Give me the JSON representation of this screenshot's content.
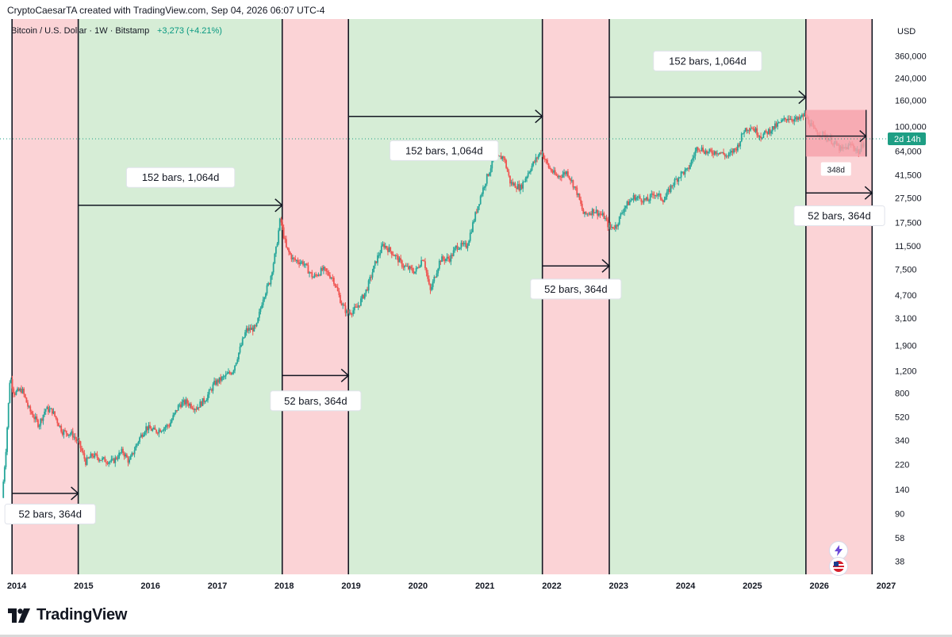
{
  "attribution": "CryptoCaesarTA created with TradingView.com, Sep 04, 2026 06:07 UTC-4",
  "footer_brand": "TradingView",
  "colors": {
    "bear_band": "#fbd3d6",
    "bull_band": "#d6edd6",
    "candle_up": "#26a69a",
    "candle_down": "#ef5350",
    "current_price": "#1e9e84",
    "projection_box": "#f6a1aa"
  },
  "chart_data": {
    "type": "candlestick",
    "title": "Bitcoin / U.S. Dollar · 1W · Bitstamp",
    "change_label": "+3,273 (+4.21%)",
    "currency": "USD",
    "y_scale": "log",
    "xlim": [
      2013.75,
      2027.0
    ],
    "ylim": [
      30,
      700000
    ],
    "x_ticks": [
      "2014",
      "2015",
      "2016",
      "2017",
      "2018",
      "2019",
      "2020",
      "2021",
      "2022",
      "2023",
      "2024",
      "2025",
      "2026",
      "2027"
    ],
    "y_ticks": [
      "360,000",
      "240,000",
      "160,000",
      "100,000",
      "64,000",
      "41,500",
      "27,500",
      "17,500",
      "11,500",
      "7,500",
      "4,700",
      "3,100",
      "1,900",
      "1,200",
      "800",
      "520",
      "340",
      "220",
      "140",
      "90",
      "58",
      "38"
    ],
    "current_price_label": "2d 14h",
    "current_price_value": 80000,
    "price_path": [
      [
        2013.8,
        120
      ],
      [
        2013.86,
        300
      ],
      [
        2013.92,
        1100
      ],
      [
        2013.98,
        800
      ],
      [
        2014.1,
        850
      ],
      [
        2014.2,
        600
      ],
      [
        2014.35,
        450
      ],
      [
        2014.45,
        600
      ],
      [
        2014.55,
        580
      ],
      [
        2014.7,
        400
      ],
      [
        2014.85,
        380
      ],
      [
        2014.95,
        320
      ],
      [
        2015.05,
        230
      ],
      [
        2015.15,
        260
      ],
      [
        2015.3,
        240
      ],
      [
        2015.45,
        230
      ],
      [
        2015.6,
        280
      ],
      [
        2015.7,
        230
      ],
      [
        2015.85,
        350
      ],
      [
        2015.95,
        430
      ],
      [
        2016.1,
        400
      ],
      [
        2016.3,
        450
      ],
      [
        2016.45,
        650
      ],
      [
        2016.55,
        680
      ],
      [
        2016.7,
        610
      ],
      [
        2016.85,
        730
      ],
      [
        2016.98,
        960
      ],
      [
        2017.1,
        1050
      ],
      [
        2017.25,
        1200
      ],
      [
        2017.45,
        2500
      ],
      [
        2017.6,
        2600
      ],
      [
        2017.7,
        4500
      ],
      [
        2017.8,
        6000
      ],
      [
        2017.9,
        11000
      ],
      [
        2017.96,
        19000
      ],
      [
        2018.05,
        11000
      ],
      [
        2018.15,
        9000
      ],
      [
        2018.3,
        8500
      ],
      [
        2018.45,
        6500
      ],
      [
        2018.6,
        7500
      ],
      [
        2018.75,
        6400
      ],
      [
        2018.88,
        4000
      ],
      [
        2018.96,
        3400
      ],
      [
        2019.1,
        3700
      ],
      [
        2019.25,
        5200
      ],
      [
        2019.4,
        9000
      ],
      [
        2019.5,
        11800
      ],
      [
        2019.65,
        10000
      ],
      [
        2019.8,
        8000
      ],
      [
        2019.98,
        7200
      ],
      [
        2020.1,
        9500
      ],
      [
        2020.2,
        5000
      ],
      [
        2020.35,
        9000
      ],
      [
        2020.5,
        9200
      ],
      [
        2020.6,
        11500
      ],
      [
        2020.75,
        11500
      ],
      [
        2020.85,
        18000
      ],
      [
        2020.96,
        29000
      ],
      [
        2021.05,
        40000
      ],
      [
        2021.15,
        55000
      ],
      [
        2021.3,
        58000
      ],
      [
        2021.4,
        36000
      ],
      [
        2021.55,
        33000
      ],
      [
        2021.7,
        47000
      ],
      [
        2021.86,
        64000
      ],
      [
        2021.98,
        47000
      ],
      [
        2022.1,
        40000
      ],
      [
        2022.25,
        44000
      ],
      [
        2022.4,
        30000
      ],
      [
        2022.5,
        20000
      ],
      [
        2022.65,
        22000
      ],
      [
        2022.8,
        19500
      ],
      [
        2022.88,
        16000
      ],
      [
        2022.98,
        16500
      ],
      [
        2023.1,
        23000
      ],
      [
        2023.25,
        28000
      ],
      [
        2023.45,
        26000
      ],
      [
        2023.55,
        30000
      ],
      [
        2023.7,
        26500
      ],
      [
        2023.82,
        35000
      ],
      [
        2023.96,
        43000
      ],
      [
        2024.05,
        45000
      ],
      [
        2024.2,
        70000
      ],
      [
        2024.35,
        62000
      ],
      [
        2024.5,
        64000
      ],
      [
        2024.65,
        58000
      ],
      [
        2024.8,
        70000
      ],
      [
        2024.9,
        95000
      ],
      [
        2025.0,
        100000
      ],
      [
        2025.15,
        84000
      ],
      [
        2025.3,
        95000
      ],
      [
        2025.45,
        108000
      ],
      [
        2025.55,
        118000
      ],
      [
        2025.7,
        112000
      ],
      [
        2025.8,
        124000
      ],
      [
        2025.86,
        110000
      ],
      [
        2025.95,
        92000
      ],
      [
        2026.05,
        88000
      ],
      [
        2026.2,
        78000
      ],
      [
        2026.35,
        65000
      ],
      [
        2026.5,
        72000
      ],
      [
        2026.62,
        62000
      ],
      [
        2026.68,
        78000
      ]
    ],
    "bear_bands": [
      [
        2013.93,
        2014.92
      ],
      [
        2017.97,
        2018.96
      ],
      [
        2021.86,
        2022.86
      ],
      [
        2025.8,
        2026.79
      ]
    ],
    "bull_bands": [
      [
        2014.92,
        2017.97
      ],
      [
        2018.96,
        2021.86
      ],
      [
        2022.86,
        2025.8
      ]
    ],
    "annotations": [
      {
        "text": "52 bars, 364d",
        "arrow_x": [
          2013.93,
          2014.92
        ],
        "arrow_y": 130,
        "label_y": 90,
        "label_x": 2014.5
      },
      {
        "text": "152 bars, 1,064d",
        "arrow_x": [
          2014.92,
          2017.97
        ],
        "arrow_y": 24000,
        "label_y": 40000,
        "label_x": 2016.45
      },
      {
        "text": "52 bars, 364d",
        "arrow_x": [
          2017.97,
          2018.96
        ],
        "arrow_y": 1100,
        "label_y": 700,
        "label_x": 2018.47
      },
      {
        "text": "152 bars, 1,064d",
        "arrow_x": [
          2018.96,
          2021.86
        ],
        "arrow_y": 120000,
        "label_y": 65000,
        "label_x": 2020.39
      },
      {
        "text": "52 bars, 364d",
        "arrow_x": [
          2021.86,
          2022.86
        ],
        "arrow_y": 8000,
        "label_y": 5300,
        "label_x": 2022.36
      },
      {
        "text": "152 bars, 1,064d",
        "arrow_x": [
          2022.86,
          2025.8
        ],
        "arrow_y": 170000,
        "label_y": 330000,
        "label_x": 2024.33
      },
      {
        "text": "52 bars, 364d",
        "arrow_x": [
          2025.8,
          2026.79
        ],
        "arrow_y": 30000,
        "label_y": 20000,
        "label_x": 2026.3
      }
    ],
    "projection_box": {
      "x": [
        2025.8,
        2026.7
      ],
      "y": [
        58000,
        135000
      ],
      "arrow_y": 84000,
      "label": "348d",
      "label_y": 46000
    }
  }
}
